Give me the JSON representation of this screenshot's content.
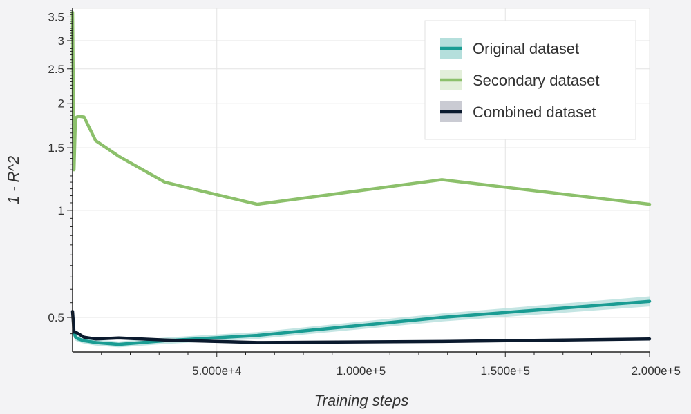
{
  "chart_data": {
    "type": "line",
    "xlabel": "Training steps",
    "ylabel": "1 - R^2",
    "xlim": [
      0,
      200000
    ],
    "ylim": [
      0.4,
      3.7
    ],
    "y_scale": "log",
    "grid": true,
    "legend_position": "top-right",
    "x_ticks": [
      {
        "value": 50000,
        "label": "5.000e+4"
      },
      {
        "value": 100000,
        "label": "1.000e+5"
      },
      {
        "value": 150000,
        "label": "1.500e+5"
      },
      {
        "value": 200000,
        "label": "2.000e+5"
      }
    ],
    "y_ticks": [
      {
        "value": 0.5,
        "label": "0.5"
      },
      {
        "value": 1,
        "label": "1"
      },
      {
        "value": 1.5,
        "label": "1.5"
      },
      {
        "value": 2,
        "label": "2"
      },
      {
        "value": 2.5,
        "label": "2.5"
      },
      {
        "value": 3,
        "label": "3"
      },
      {
        "value": 3.5,
        "label": "3.5"
      }
    ],
    "series": [
      {
        "name": "Original dataset",
        "color": "#1a9c93",
        "band_color": "#b5dfdc",
        "x": [
          500,
          1000,
          2000,
          4000,
          8000,
          16000,
          32000,
          64000,
          128000,
          200000
        ],
        "y": [
          0.455,
          0.44,
          0.435,
          0.43,
          0.425,
          0.42,
          0.43,
          0.445,
          0.5,
          0.555
        ],
        "band": [
          0.012,
          0.01,
          0.008,
          0.008,
          0.008,
          0.008,
          0.009,
          0.01,
          0.013,
          0.018
        ]
      },
      {
        "name": "Secondary dataset",
        "color": "#8cc06b",
        "band_color": "#e3efda",
        "x": [
          0,
          500,
          1000,
          2000,
          4000,
          8000,
          16000,
          32000,
          64000,
          128000,
          200000
        ],
        "y": [
          3.6,
          1.3,
          1.82,
          1.84,
          1.83,
          1.57,
          1.42,
          1.2,
          1.04,
          1.22,
          1.04
        ],
        "band": [
          0,
          0,
          0,
          0,
          0,
          0,
          0,
          0,
          0,
          0,
          0
        ]
      },
      {
        "name": "Combined dataset",
        "color": "#0b1a2e",
        "band_color": "#cacbd3",
        "x": [
          0,
          500,
          1000,
          2000,
          4000,
          8000,
          16000,
          32000,
          64000,
          128000,
          200000
        ],
        "y": [
          0.52,
          0.455,
          0.455,
          0.45,
          0.44,
          0.435,
          0.438,
          0.432,
          0.425,
          0.428,
          0.435
        ],
        "band": [
          0,
          0.005,
          0.004,
          0.004,
          0.004,
          0.004,
          0.004,
          0.004,
          0.004,
          0.004,
          0.004
        ]
      }
    ]
  }
}
